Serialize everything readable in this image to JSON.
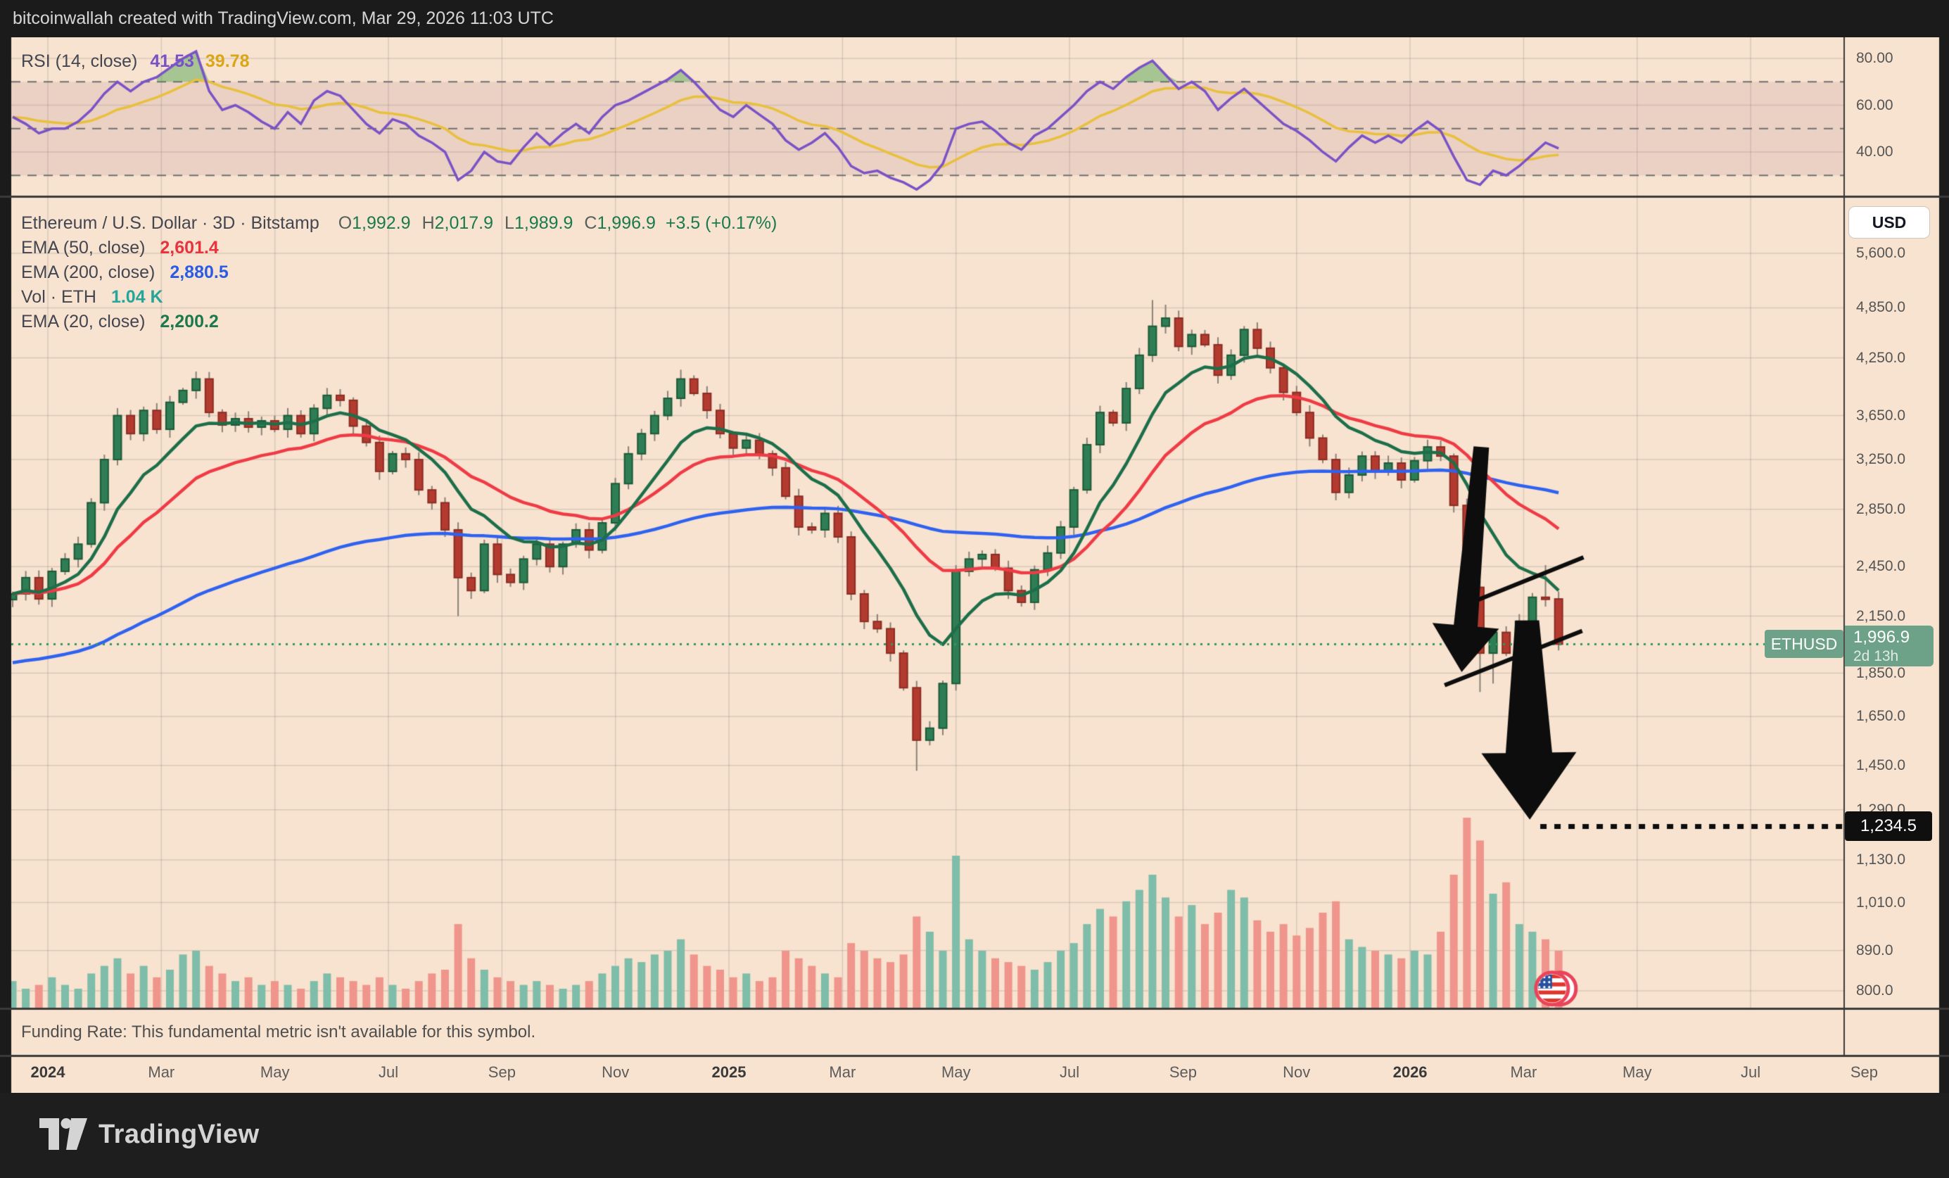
{
  "header": {
    "title": "bitcoinwallah created with TradingView.com, Mar 29, 2026 11:03 UTC"
  },
  "rsi_panel": {
    "label": "RSI (14, close)",
    "value": "41.53",
    "signal_value": "39.78",
    "axis_ticks": [
      {
        "label": "80.00",
        "value": 80
      },
      {
        "label": "60.00",
        "value": 60
      },
      {
        "label": "40.00",
        "value": 40
      }
    ]
  },
  "main": {
    "title": "Ethereum / U.S. Dollar · 3D · Bitstamp",
    "ohlc": [
      {
        "k": "O",
        "v": "1,992.9"
      },
      {
        "k": "H",
        "v": "2,017.9"
      },
      {
        "k": "L",
        "v": "1,989.9"
      },
      {
        "k": "C",
        "v": "1,996.9"
      }
    ],
    "change": "+3.5 (+0.17%)",
    "indicators": [
      {
        "label": "EMA (50, close)",
        "value": "2,601.4",
        "color": "#E8333F"
      },
      {
        "label": "EMA (200, close)",
        "value": "2,880.5",
        "color": "#2B5CE6"
      },
      {
        "label": "Vol · ETH",
        "value": "1.04 K",
        "color": "#26A69A"
      },
      {
        "label": "EMA (20, close)",
        "value": "2,200.2",
        "color": "#1B7A4C"
      }
    ],
    "currency_button": "USD",
    "price_badge": {
      "symbol": "ETHUSD",
      "price": "1,996.9",
      "countdown": "2d 13h"
    },
    "target_badge": "1,234.5",
    "price_axis_ticks": [
      {
        "label": "5,600.0",
        "value": 5600
      },
      {
        "label": "4,850.0",
        "value": 4850
      },
      {
        "label": "4,250.0",
        "value": 4250
      },
      {
        "label": "3,650.0",
        "value": 3650
      },
      {
        "label": "3,250.0",
        "value": 3250
      },
      {
        "label": "2,850.0",
        "value": 2850
      },
      {
        "label": "2,450.0",
        "value": 2450
      },
      {
        "label": "2,150.0",
        "value": 2150
      },
      {
        "label": "1,850.0",
        "value": 1850
      },
      {
        "label": "1,650.0",
        "value": 1650
      },
      {
        "label": "1,450.0",
        "value": 1450
      },
      {
        "label": "1,290.0",
        "value": 1290
      },
      {
        "label": "1,130.0",
        "value": 1130
      },
      {
        "label": "1,010.0",
        "value": 1010
      },
      {
        "label": "890.0",
        "value": 890
      },
      {
        "label": "800.0",
        "value": 800
      }
    ]
  },
  "funding_note": "Funding Rate: This fundamental metric isn't available for this symbol.",
  "time_axis": {
    "labels": [
      {
        "label": "2024",
        "month": 0,
        "bold": true
      },
      {
        "label": "Mar",
        "month": 2
      },
      {
        "label": "May",
        "month": 4
      },
      {
        "label": "Jul",
        "month": 6
      },
      {
        "label": "Sep",
        "month": 8
      },
      {
        "label": "Nov",
        "month": 10
      },
      {
        "label": "2025",
        "month": 12,
        "bold": true
      },
      {
        "label": "Mar",
        "month": 14
      },
      {
        "label": "May",
        "month": 16
      },
      {
        "label": "Jul",
        "month": 18
      },
      {
        "label": "Sep",
        "month": 20
      },
      {
        "label": "Nov",
        "month": 22
      },
      {
        "label": "2026",
        "month": 24,
        "bold": true
      },
      {
        "label": "Mar",
        "month": 26
      },
      {
        "label": "May",
        "month": 28
      },
      {
        "label": "Jul",
        "month": 30
      },
      {
        "label": "Sep",
        "month": 32
      }
    ]
  },
  "footer": {
    "brand": "TradingView"
  },
  "colors": {
    "bg_dark": "#1B1B1B",
    "pane_bg": "#F7E3CF",
    "grid": "rgba(120,110,115,0.22)",
    "separator": "#3A3A3A",
    "candle_up": "#2F7D54",
    "candle_up_border": "#1C5A38",
    "candle_down": "#B33A2E",
    "candle_down_border": "#8C2D24",
    "wick": "#8A8178",
    "ema20": "#1D6E4A",
    "ema50": "#EF3B46",
    "ema200": "#2F62F0",
    "vol_up": "#7EBDA9",
    "vol_down": "#F0958C",
    "rsi_line": "#7A52C7",
    "rsi_signal": "#E9C03C",
    "rsi_band": "rgba(150,85,120,0.12)",
    "rsi_overbought_fill": "rgba(67,160,71,0.45)",
    "price_line": "#2E9960",
    "badge_green": "#6DA288",
    "drawing": "#0D0D0D"
  },
  "chart_data": {
    "type": "candlestick",
    "symbol": "ETHUSD",
    "interval": "3D",
    "exchange": "Bitstamp",
    "price_scale": "log",
    "x_unit": "weeks from late Dec 2023 through Mar 29 2026",
    "current_price": 1996.9,
    "target_price": 1234.5,
    "weekly_closes": [
      2280,
      2380,
      2250,
      2420,
      2500,
      2600,
      2900,
      3250,
      3650,
      3480,
      3700,
      3520,
      3780,
      3900,
      4020,
      3680,
      3560,
      3620,
      3540,
      3600,
      3520,
      3650,
      3480,
      3720,
      3850,
      3800,
      3550,
      3400,
      3150,
      3300,
      3250,
      3000,
      2900,
      2700,
      2380,
      2300,
      2600,
      2400,
      2350,
      2500,
      2600,
      2450,
      2600,
      2700,
      2560,
      2750,
      3050,
      3300,
      3480,
      3650,
      3820,
      4020,
      3870,
      3700,
      3480,
      3350,
      3420,
      3300,
      3180,
      2950,
      2720,
      2700,
      2820,
      2650,
      2280,
      2120,
      2080,
      1950,
      1780,
      1550,
      1600,
      1800,
      2420,
      2500,
      2530,
      2440,
      2300,
      2230,
      2430,
      2540,
      2720,
      3000,
      3380,
      3680,
      3580,
      3920,
      4280,
      4620,
      4720,
      4380,
      4520,
      4400,
      4060,
      4280,
      4580,
      4360,
      4140,
      3880,
      3680,
      3440,
      3250,
      2980,
      3120,
      3280,
      3150,
      3220,
      3080,
      3240,
      3360,
      3280,
      2880,
      2320,
      1950,
      2060,
      1950,
      2120,
      2260,
      2250,
      1996.9
    ],
    "high_overrides": {
      "14": 4100,
      "51": 4120,
      "87": 4950,
      "88": 4890,
      "117": 2460
    },
    "low_overrides": {
      "34": 2150,
      "69": 1430,
      "112": 1760,
      "113": 1800
    },
    "volume_rel": [
      14,
      10,
      12,
      16,
      12,
      10,
      18,
      22,
      26,
      18,
      22,
      16,
      20,
      28,
      30,
      22,
      18,
      14,
      16,
      12,
      14,
      12,
      10,
      14,
      18,
      16,
      14,
      12,
      16,
      12,
      10,
      14,
      18,
      20,
      44,
      26,
      20,
      16,
      14,
      12,
      14,
      12,
      10,
      12,
      14,
      18,
      22,
      26,
      24,
      28,
      30,
      36,
      28,
      22,
      20,
      16,
      18,
      14,
      16,
      30,
      26,
      22,
      18,
      16,
      34,
      30,
      26,
      24,
      28,
      48,
      40,
      30,
      80,
      36,
      30,
      26,
      24,
      22,
      20,
      24,
      30,
      34,
      44,
      52,
      48,
      56,
      62,
      70,
      58,
      48,
      54,
      44,
      50,
      62,
      58,
      46,
      40,
      44,
      38,
      42,
      50,
      56,
      36,
      32,
      30,
      28,
      26,
      30,
      28,
      40,
      70,
      100,
      88,
      60,
      66,
      44,
      40,
      36,
      30
    ],
    "rsi": [
      55,
      52,
      48,
      50,
      50,
      53,
      58,
      65,
      70,
      66,
      70,
      72,
      76,
      80,
      83,
      66,
      58,
      60,
      57,
      53,
      50,
      57,
      52,
      62,
      66,
      64,
      58,
      52,
      48,
      54,
      52,
      47,
      44,
      40,
      28,
      32,
      40,
      36,
      35,
      42,
      48,
      43,
      48,
      52,
      48,
      55,
      60,
      62,
      65,
      68,
      71,
      75,
      70,
      64,
      58,
      55,
      60,
      56,
      52,
      45,
      41,
      44,
      48,
      42,
      34,
      31,
      32,
      29,
      27,
      24,
      28,
      35,
      50,
      52,
      53,
      49,
      44,
      41,
      47,
      50,
      55,
      60,
      66,
      70,
      67,
      72,
      76,
      79,
      73,
      67,
      70,
      66,
      58,
      63,
      67,
      62,
      57,
      52,
      49,
      45,
      40,
      36,
      42,
      47,
      44,
      47,
      44,
      49,
      53,
      49,
      38,
      28,
      26,
      32,
      30,
      34,
      39,
      44,
      41.53
    ],
    "rsi_levels": {
      "overbought": 70,
      "middle": 50,
      "oversold": 30
    },
    "annotations": {
      "trendlines": [
        {
          "name": "flag-upper",
          "w1": 111.5,
          "p1": 2234,
          "w2": 119.9,
          "p2": 2511
        },
        {
          "name": "flag-lower",
          "w1": 109.3,
          "p1": 1792,
          "w2": 119.8,
          "p2": 2068
        }
      ],
      "arrows": [
        {
          "name": "breakdown-arrow",
          "w1": 112.1,
          "p1": 3360,
          "w2": 110.6,
          "p2": 1855,
          "shaft1": 22,
          "shaft2": 34,
          "head_w": 95,
          "head_l": 66
        },
        {
          "name": "target-arrow",
          "w1": 115.6,
          "p1": 2126,
          "w2": 115.8,
          "p2": 1257,
          "shaft1": 34,
          "shaft2": 66,
          "head_w": 135,
          "head_l": 95
        }
      ],
      "target_line": {
        "price": 1234.5,
        "from_week": 116.6
      },
      "flag_sticker": {
        "week": 117.5,
        "price": 805
      }
    }
  }
}
